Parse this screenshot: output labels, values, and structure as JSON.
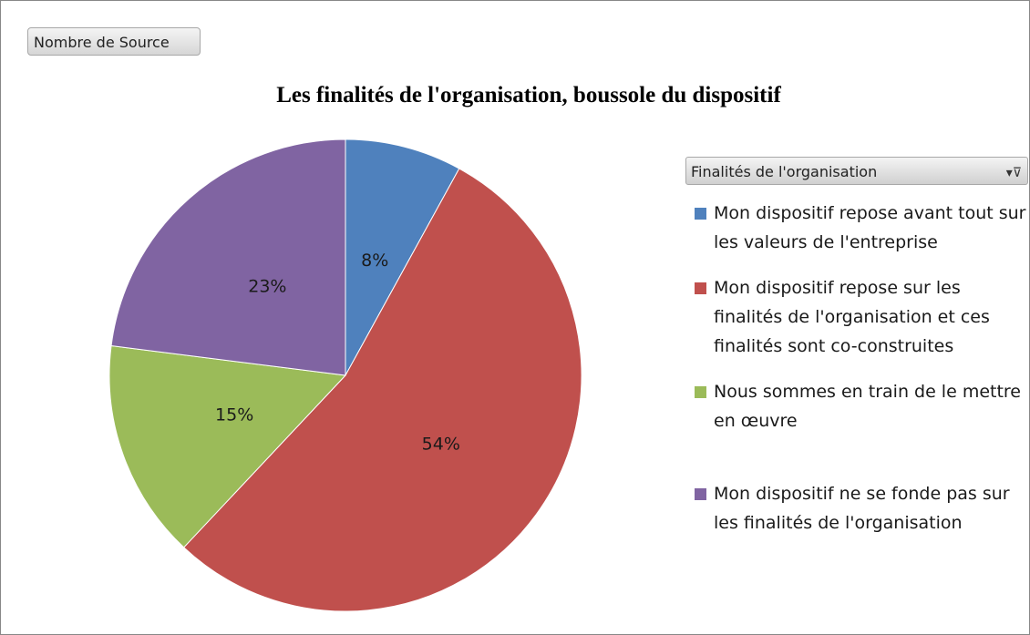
{
  "chart_data": {
    "type": "pie",
    "title": "Les finalités de l'organisation, boussole du dispositif",
    "field_button": "Nombre de Source",
    "legend_title": "Finalités de l'organisation",
    "categories": [
      "Mon dispositif repose avant tout sur les valeurs de l'entreprise",
      "Mon dispositif repose sur les finalités de l'organisation et ces finalités sont co-construites",
      "Nous sommes en train de le mettre en œuvre",
      "Mon dispositif ne se fonde pas sur les finalités de l'organisation"
    ],
    "values": [
      8,
      54,
      15,
      23
    ],
    "value_labels": [
      "8%",
      "54%",
      "15%",
      "23%"
    ],
    "colors": [
      "#4f81bd",
      "#c0504d",
      "#9bbb59",
      "#8064a2"
    ],
    "legend": "right"
  }
}
